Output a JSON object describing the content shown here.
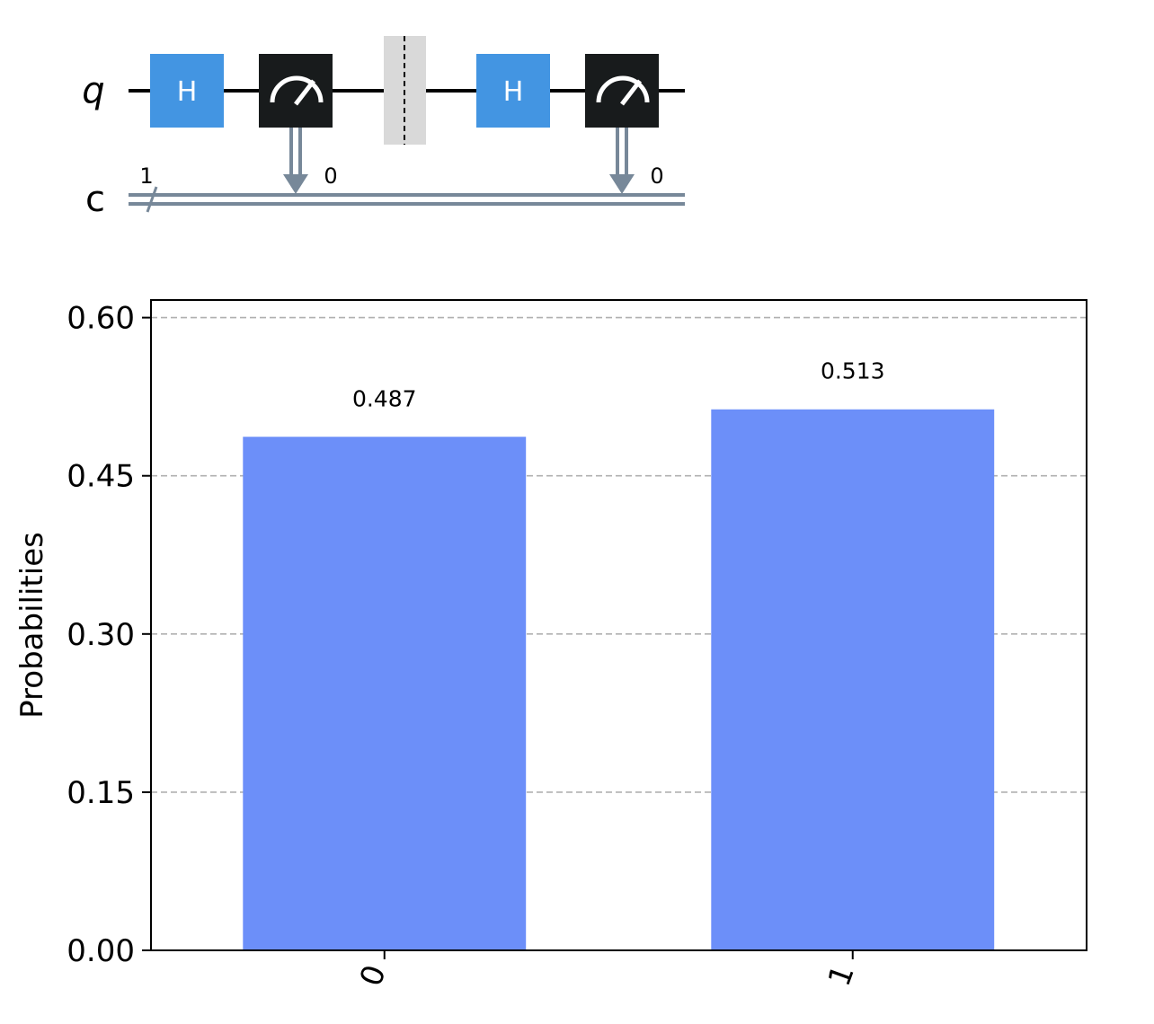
{
  "circuit": {
    "qubit_label": "q",
    "clbit_label": "c",
    "clbit_bus_width": "1",
    "gate_h_label": "H",
    "measure_1_target": "0",
    "measure_2_target": "0",
    "colors": {
      "h_gate": "#4395e2",
      "measure_gate": "#181b1c",
      "barrier": "#d9d9d9",
      "classical_wire": "#778899"
    }
  },
  "chart_data": {
    "type": "bar",
    "categories": [
      "0",
      "1"
    ],
    "values": [
      0.487,
      0.513
    ],
    "value_labels": [
      "0.487",
      "0.513"
    ],
    "ylabel": "Probabilities",
    "ylim": [
      0,
      0.6167
    ],
    "yticks": [
      "0.00",
      "0.15",
      "0.30",
      "0.45",
      "0.60"
    ],
    "ytick_values": [
      0,
      0.15,
      0.3,
      0.45,
      0.6
    ],
    "grid": true,
    "bar_color": "#6c8ff9"
  }
}
